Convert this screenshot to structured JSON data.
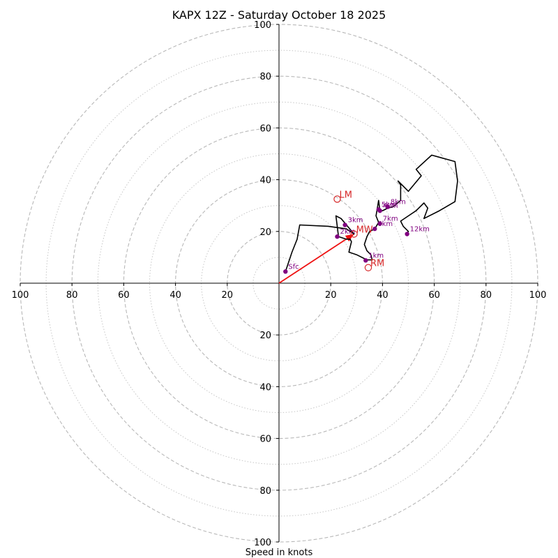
{
  "chart_data": {
    "type": "hodograph",
    "title": "KAPX 12Z - Saturday October 18 2025",
    "xlabel": "Speed in knots",
    "xlim": [
      -100,
      100
    ],
    "ylim": [
      -100,
      100
    ],
    "ring_major": [
      20,
      40,
      60,
      80,
      100
    ],
    "ring_minor": [
      10,
      30,
      50,
      70,
      90
    ],
    "tick_labels": {
      "left": [
        "100",
        "80",
        "60",
        "40",
        "20"
      ],
      "right": [
        "20",
        "40",
        "60",
        "80",
        "100"
      ],
      "top": [
        "20",
        "40",
        "60",
        "80",
        "100"
      ],
      "bottom": [
        "20",
        "40",
        "60",
        "80",
        "100"
      ]
    },
    "profile_uv": [
      [
        2.5,
        4.5
      ],
      [
        5,
        12
      ],
      [
        7,
        17
      ],
      [
        8,
        22.5
      ],
      [
        19,
        22
      ],
      [
        26,
        21
      ],
      [
        29,
        19
      ],
      [
        24,
        25
      ],
      [
        22,
        26
      ],
      [
        22.5,
        22
      ],
      [
        23,
        18
      ],
      [
        26,
        17
      ],
      [
        27.5,
        17
      ],
      [
        28,
        16
      ],
      [
        27.5,
        14
      ],
      [
        27,
        12
      ],
      [
        30,
        11
      ],
      [
        34,
        9
      ],
      [
        36,
        9
      ],
      [
        35.5,
        11
      ],
      [
        34,
        12.5
      ],
      [
        33,
        15
      ],
      [
        34,
        18
      ],
      [
        35,
        20
      ],
      [
        37,
        21
      ],
      [
        38.5,
        23.5
      ],
      [
        37.5,
        26
      ],
      [
        38,
        29
      ],
      [
        38.5,
        32
      ],
      [
        39,
        28
      ],
      [
        40,
        28
      ],
      [
        42,
        29
      ],
      [
        44,
        29.5
      ],
      [
        47,
        32
      ],
      [
        47,
        38
      ],
      [
        46,
        39.5
      ],
      [
        50,
        35.5
      ],
      [
        55,
        41.5
      ],
      [
        53,
        44
      ],
      [
        59,
        49.5
      ],
      [
        68,
        47
      ],
      [
        69,
        39.5
      ],
      [
        68,
        31.5
      ],
      [
        62,
        28
      ],
      [
        56,
        25
      ],
      [
        57.5,
        29
      ],
      [
        56,
        31
      ],
      [
        53,
        28
      ],
      [
        50,
        26
      ],
      [
        47,
        24
      ],
      [
        48,
        22
      ],
      [
        50,
        20
      ],
      [
        49.5,
        19
      ]
    ],
    "height_markers": [
      {
        "label": "Sfc",
        "u": 2.5,
        "v": 4.5
      },
      {
        "label": "1km",
        "u": 33.5,
        "v": 8.8
      },
      {
        "label": "2km",
        "u": 22.5,
        "v": 18
      },
      {
        "label": "3km",
        "u": 25.5,
        "v": 22.5
      },
      {
        "label": "4km",
        "u": 39,
        "v": 28
      },
      {
        "label": "5km",
        "u": 38.5,
        "v": 28.5
      },
      {
        "label": "6km",
        "u": 37,
        "v": 21
      },
      {
        "label": "7km",
        "u": 39,
        "v": 23
      },
      {
        "label": "8km",
        "u": 42,
        "v": 29.5
      },
      {
        "label": "12km",
        "u": 49.5,
        "v": 19
      }
    ],
    "storm_motions": [
      {
        "label": "LM",
        "u": 22.5,
        "v": 32.5
      },
      {
        "label": "MW",
        "u": 29,
        "v": 19
      },
      {
        "label": "RM",
        "u": 34.5,
        "v": 6
      }
    ],
    "mean_wind_vector": {
      "u": 29,
      "v": 19
    },
    "colors": {
      "profile": "#000000",
      "markers": "#800080",
      "motion": "#d62728",
      "vector": "#ee1111",
      "ring": "#b8b8b8",
      "axis": "#000000"
    }
  }
}
